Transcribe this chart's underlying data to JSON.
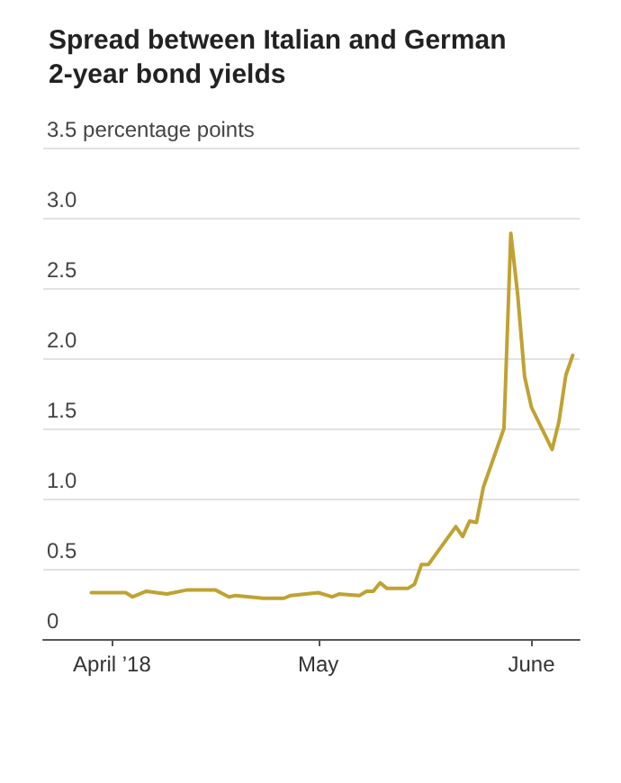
{
  "chart_data": {
    "type": "line",
    "title": "Spread between Italian and German 2-year bond yields",
    "x": [
      "2018-03-29",
      "2018-04-03",
      "2018-04-04",
      "2018-04-06",
      "2018-04-09",
      "2018-04-12",
      "2018-04-16",
      "2018-04-18",
      "2018-04-19",
      "2018-04-23",
      "2018-04-26",
      "2018-04-27",
      "2018-05-01",
      "2018-05-03",
      "2018-05-04",
      "2018-05-07",
      "2018-05-08",
      "2018-05-09",
      "2018-05-10",
      "2018-05-11",
      "2018-05-14",
      "2018-05-15",
      "2018-05-16",
      "2018-05-17",
      "2018-05-21",
      "2018-05-22",
      "2018-05-23",
      "2018-05-24",
      "2018-05-25",
      "2018-05-28",
      "2018-05-29",
      "2018-05-30",
      "2018-05-31",
      "2018-06-01",
      "2018-06-04",
      "2018-06-05",
      "2018-06-06",
      "2018-06-07"
    ],
    "series": [
      {
        "color": "#c0a232",
        "values": [
          0.33,
          0.33,
          0.3,
          0.34,
          0.32,
          0.35,
          0.35,
          0.3,
          0.31,
          0.29,
          0.29,
          0.31,
          0.33,
          0.3,
          0.32,
          0.31,
          0.34,
          0.34,
          0.4,
          0.36,
          0.36,
          0.39,
          0.53,
          0.53,
          0.8,
          0.73,
          0.84,
          0.83,
          1.08,
          1.5,
          2.89,
          2.45,
          1.87,
          1.65,
          1.35,
          1.55,
          1.88,
          2.02
        ]
      }
    ],
    "xlim": [
      "2018-03-22",
      "2018-06-08"
    ],
    "xticks": [
      {
        "value": "2018-04-01",
        "label": "April ’18"
      },
      {
        "value": "2018-05-01",
        "label": "May"
      },
      {
        "value": "2018-06-01",
        "label": "June"
      }
    ],
    "ylim": [
      0,
      3.5
    ],
    "yticks": [
      {
        "value": 0,
        "label": "0"
      },
      {
        "value": 0.5,
        "label": "0.5"
      },
      {
        "value": 1,
        "label": "1.0"
      },
      {
        "value": 1.5,
        "label": "1.5"
      },
      {
        "value": 2,
        "label": "2.0"
      },
      {
        "value": 2.5,
        "label": "2.5"
      },
      {
        "value": 3,
        "label": "3.0"
      },
      {
        "value": 3.5,
        "label": "3.5 percentage points"
      }
    ],
    "grid": "y",
    "marker": "none",
    "line_style": "solid"
  }
}
